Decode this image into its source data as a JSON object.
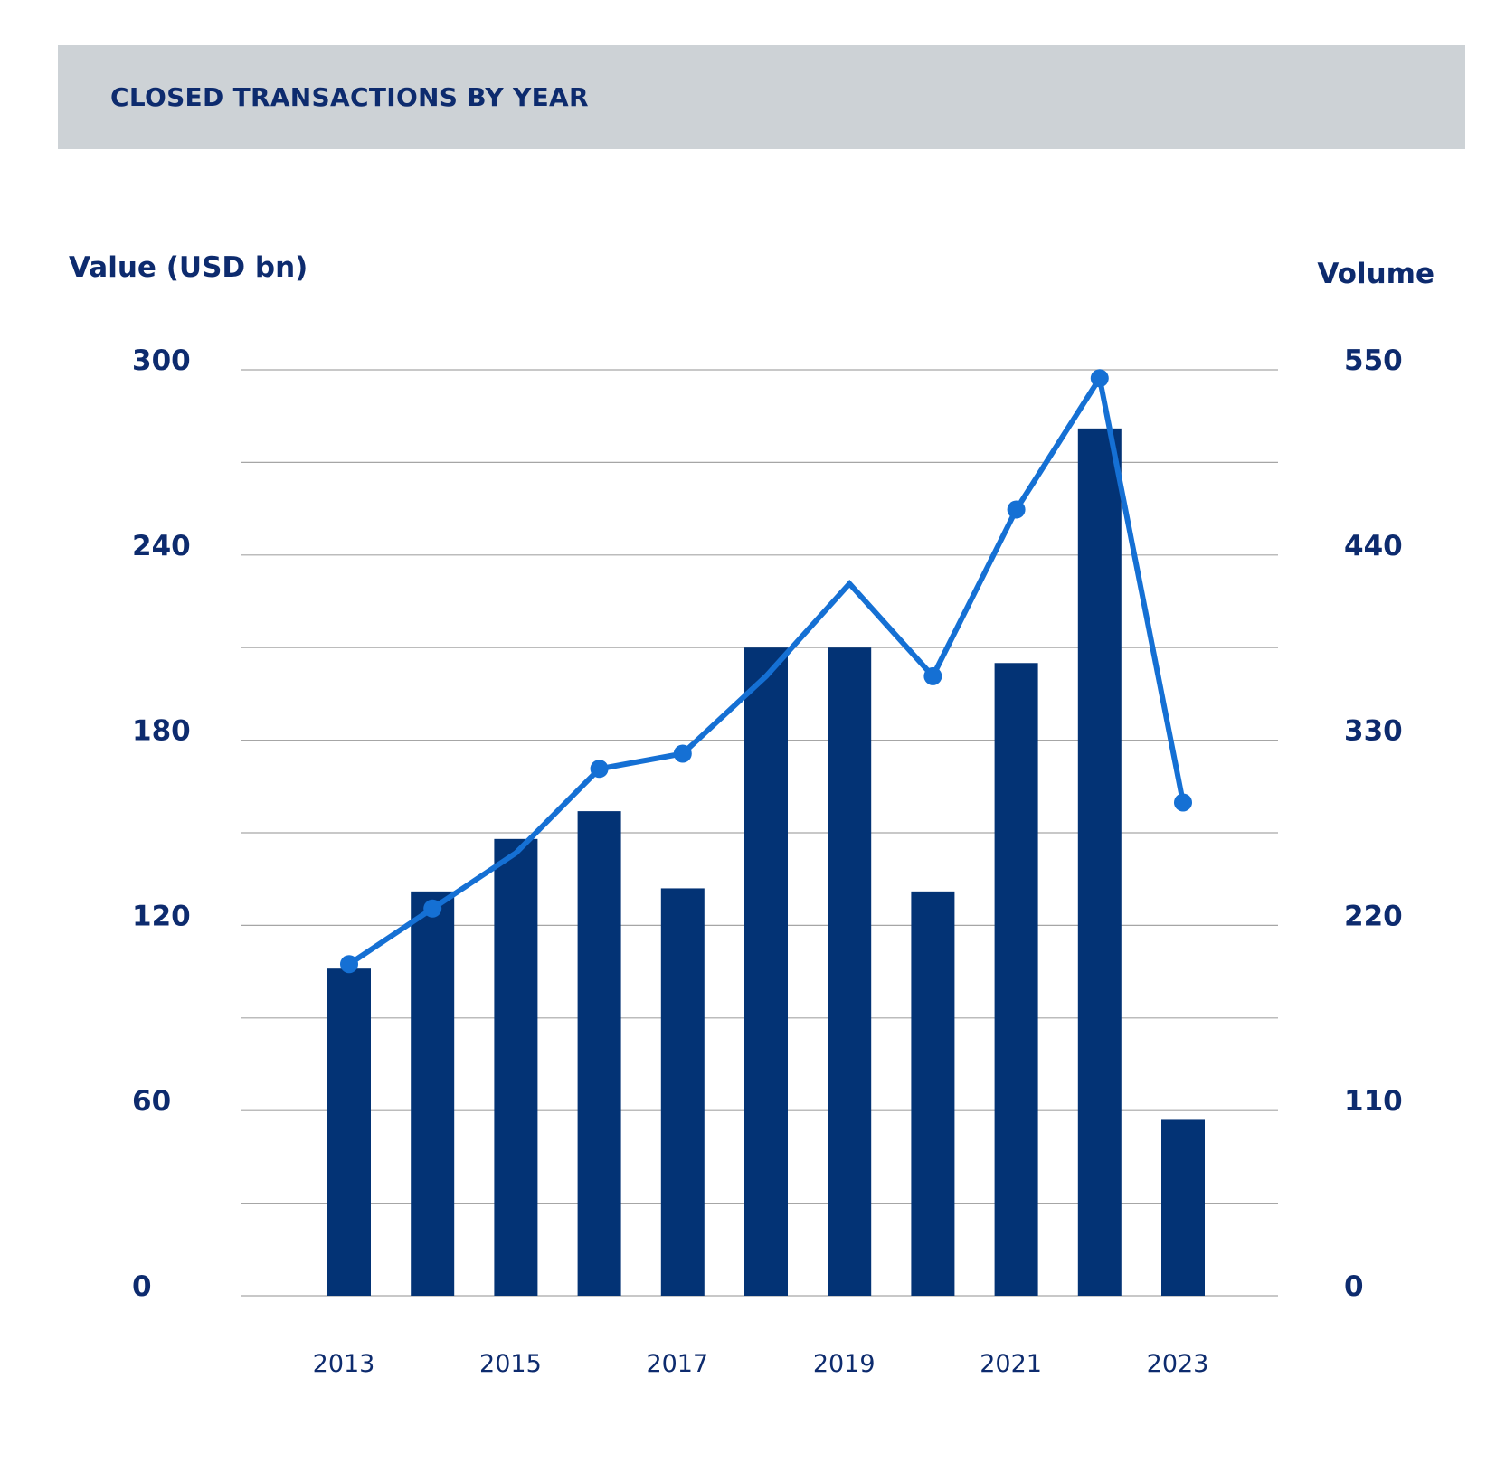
{
  "header": {
    "title": "CLOSED TRANSACTIONS BY YEAR"
  },
  "colors": {
    "bar": "#033375",
    "line": "#1570d4",
    "grid": "#a6a6a6",
    "text": "#0d2b6e",
    "band": "#cdd2d6"
  },
  "chart_data": {
    "type": "bar",
    "title": "CLOSED TRANSACTIONS BY YEAR",
    "categories": [
      "2013",
      "2014",
      "2015",
      "2016",
      "2017",
      "2018",
      "2019",
      "2020",
      "2021",
      "2022",
      "2023"
    ],
    "xtick_labels": [
      "2013",
      "2015",
      "2017",
      "2019",
      "2021",
      "2023"
    ],
    "series": [
      {
        "name": "Value (USD bn)",
        "kind": "bar",
        "axis": "left",
        "values": [
          106,
          131,
          148,
          157,
          132,
          210,
          210,
          131,
          205,
          281,
          57
        ]
      },
      {
        "name": "Volume",
        "kind": "line",
        "axis": "right",
        "values": [
          197,
          230,
          263,
          313,
          322,
          368,
          423,
          368,
          467,
          545,
          293
        ]
      }
    ],
    "ylabel_left": "Value (USD bn)",
    "ylabel_right": "Volume",
    "ylim_left": [
      0,
      300
    ],
    "ylim_right": [
      0,
      550
    ],
    "yticks_left": [
      "0",
      "60",
      "120",
      "180",
      "240",
      "300"
    ],
    "yticks_right": [
      "0",
      "110",
      "220",
      "330",
      "440",
      "550"
    ],
    "gridlines": 10
  }
}
